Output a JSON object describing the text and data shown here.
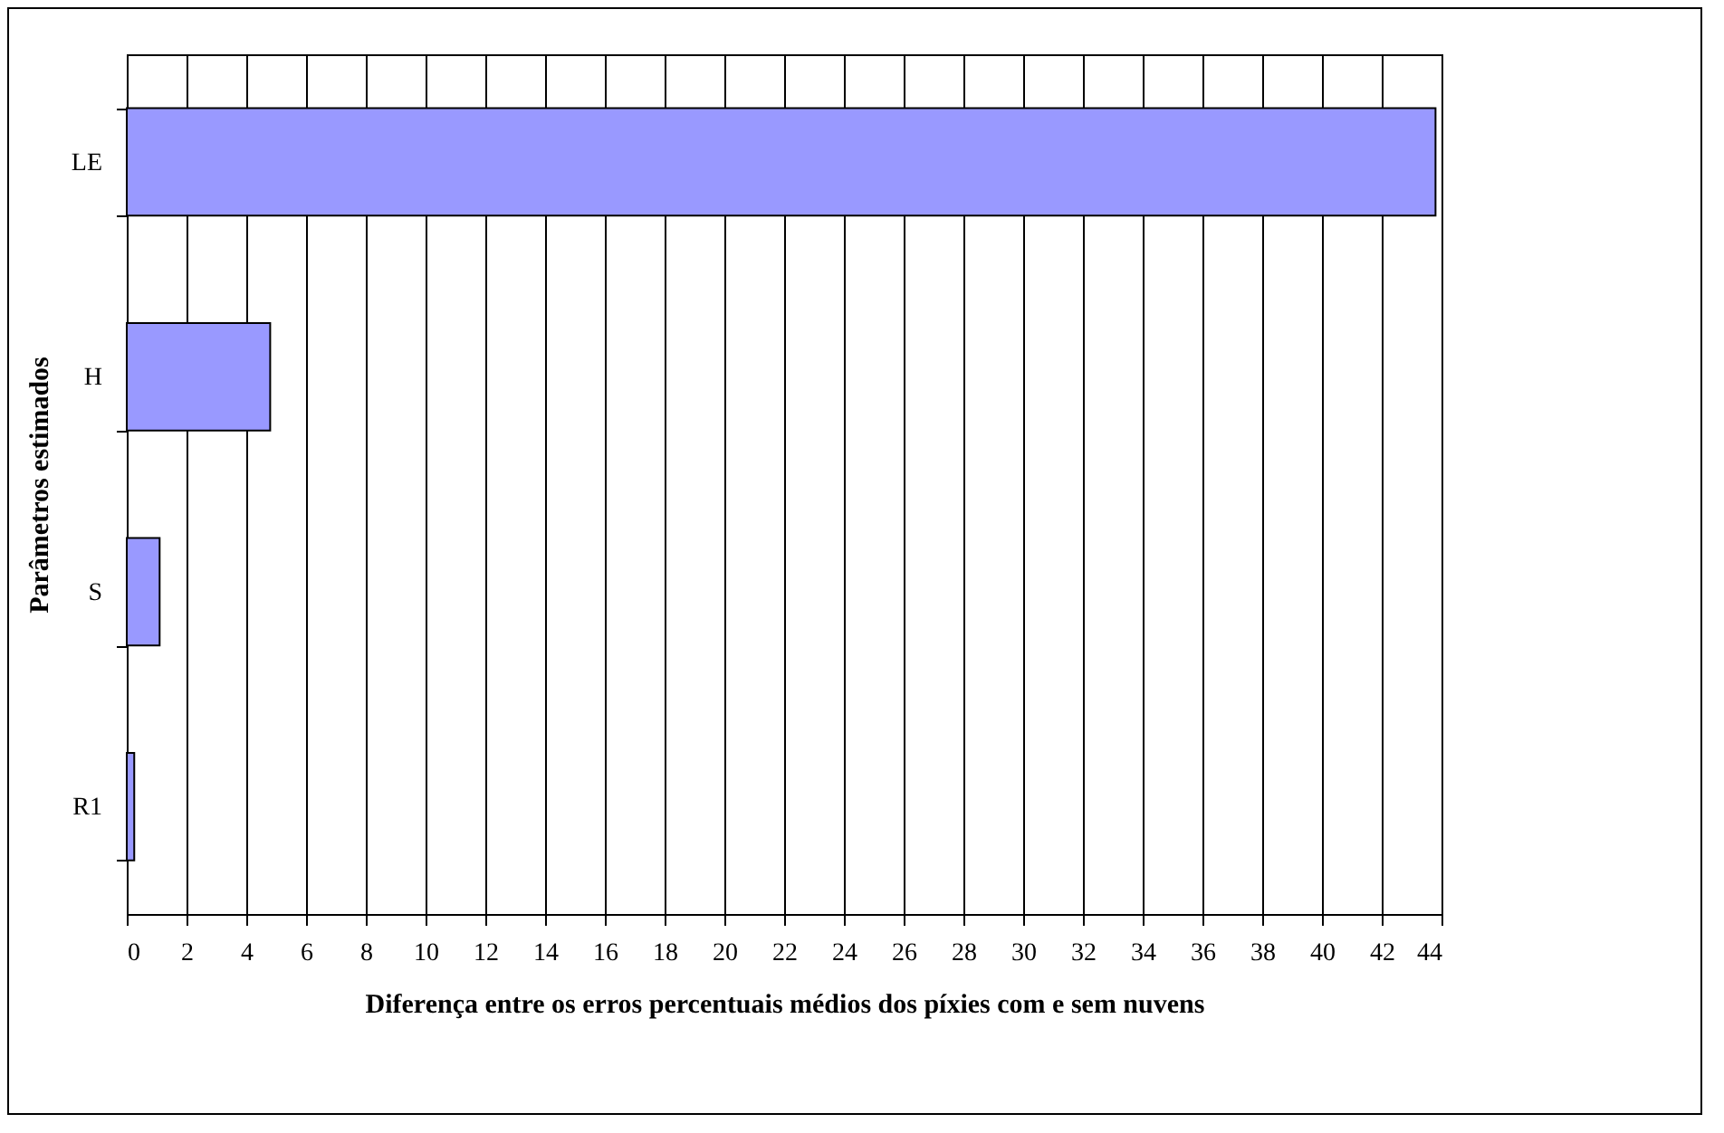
{
  "chart_data": {
    "type": "bar",
    "orientation": "horizontal",
    "xlabel": "Diferença entre os erros percentuais médios dos píxies com e sem nuvens",
    "ylabel": "Parâmetros estimados",
    "categories": [
      "LE",
      "H",
      "S",
      "R1"
    ],
    "values": [
      43.8,
      4.8,
      1.1,
      0.25
    ],
    "color": "#9999ff",
    "xlim": [
      0,
      44
    ],
    "xticks": [
      0,
      2,
      4,
      6,
      8,
      10,
      12,
      14,
      16,
      18,
      20,
      22,
      24,
      26,
      28,
      30,
      32,
      34,
      36,
      38,
      40,
      42,
      44
    ],
    "grid": "x"
  }
}
